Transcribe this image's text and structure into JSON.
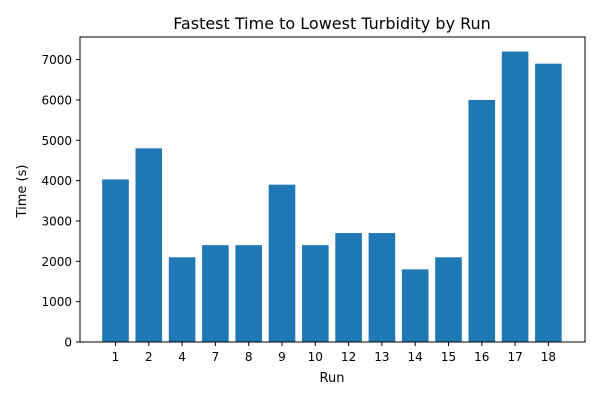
{
  "chart_data": {
    "type": "bar",
    "title": "Fastest Time to Lowest Turbidity by Run",
    "xlabel": "Run",
    "ylabel": "Time (s)",
    "categories": [
      "1",
      "2",
      "4",
      "7",
      "8",
      "9",
      "10",
      "12",
      "13",
      "14",
      "15",
      "16",
      "17",
      "18"
    ],
    "values": [
      4030,
      4800,
      2100,
      2400,
      2400,
      3900,
      2400,
      2700,
      2700,
      1800,
      2100,
      6000,
      7200,
      6900
    ],
    "ylim": [
      0,
      7560
    ],
    "yticks": [
      0,
      1000,
      2000,
      3000,
      4000,
      5000,
      6000,
      7000
    ],
    "grid": false,
    "bar_color": "#1f77b4",
    "axis_color": "#000000"
  }
}
